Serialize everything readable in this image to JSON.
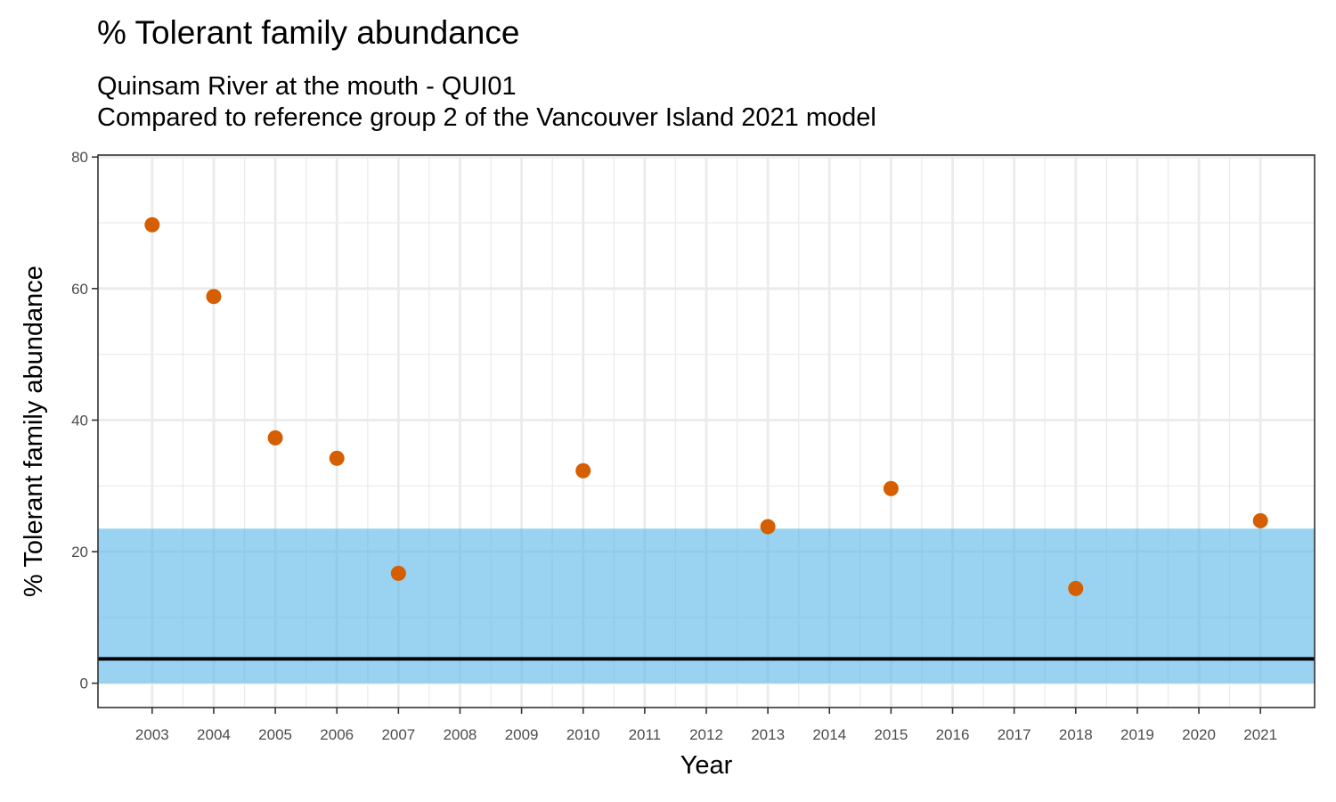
{
  "chart_data": {
    "type": "scatter",
    "title": "% Tolerant family abundance",
    "subtitle_lines": [
      "Quinsam River at the mouth - QUI01",
      "Compared to reference group 2 of the Vancouver Island 2021 model"
    ],
    "xlabel": "Year",
    "ylabel": "% Tolerant family abundance",
    "x_ticks": [
      2003,
      2004,
      2005,
      2006,
      2007,
      2008,
      2009,
      2010,
      2011,
      2012,
      2013,
      2014,
      2015,
      2016,
      2017,
      2018,
      2019,
      2020,
      2021
    ],
    "y_ticks": [
      0,
      20,
      40,
      60,
      80
    ],
    "xlim": [
      2002.12,
      2021.88
    ],
    "ylim": [
      -3.7,
      80.3
    ],
    "grid": true,
    "points": [
      {
        "x": 2003,
        "y": 69.7
      },
      {
        "x": 2004,
        "y": 58.8
      },
      {
        "x": 2005,
        "y": 37.3
      },
      {
        "x": 2006,
        "y": 34.2
      },
      {
        "x": 2007,
        "y": 16.7
      },
      {
        "x": 2010,
        "y": 32.3
      },
      {
        "x": 2013,
        "y": 23.8
      },
      {
        "x": 2015,
        "y": 29.6
      },
      {
        "x": 2018,
        "y": 14.4
      },
      {
        "x": 2021,
        "y": 24.7
      }
    ],
    "reference_band": {
      "ymin": 0,
      "ymax": 23.5
    },
    "reference_line": {
      "y": 3.7
    },
    "colors": {
      "points": "#d55e00",
      "band": "#56b4e9",
      "line": "#000000",
      "grid": "#ebebeb",
      "panel_border": "#333333"
    }
  }
}
